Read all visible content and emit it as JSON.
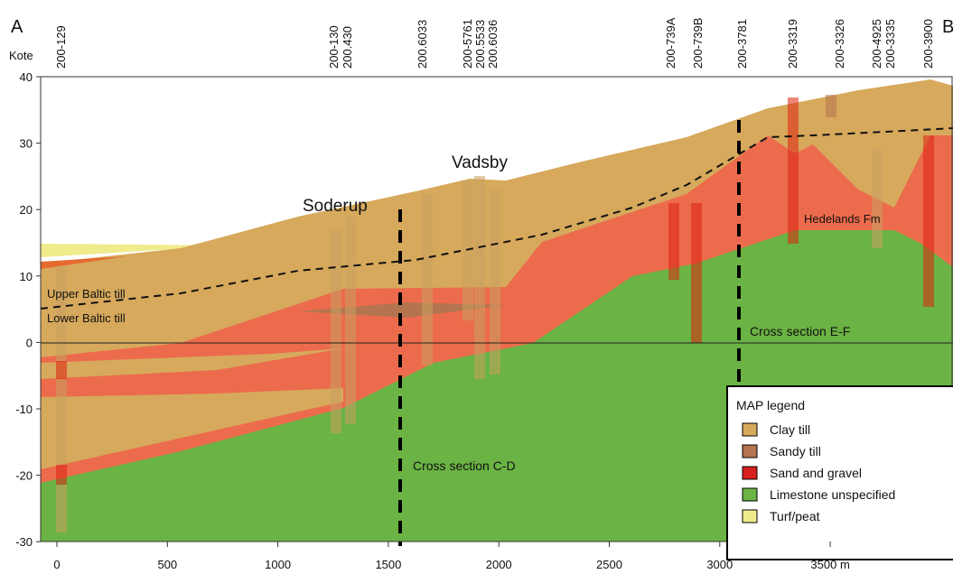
{
  "markers": {
    "start": "A",
    "end": "B"
  },
  "axis": {
    "y_label": "Kote",
    "y_ticks": [
      40,
      30,
      20,
      10,
      0,
      -10,
      -20,
      -30
    ],
    "x_ticks": [
      0,
      500,
      1000,
      1500,
      2000,
      2500,
      3000,
      "3500 m"
    ]
  },
  "boreholes": [
    "200-129",
    "200-130",
    "200.430",
    "200.6033",
    "200-5761",
    "200.5533",
    "200.6036",
    "200-739A",
    "200-739B",
    "200-3781",
    "200-3319",
    "200-3326",
    "200-4925",
    "200-3335",
    "200-3900"
  ],
  "labels": {
    "soderup": "Soderup",
    "vadsby": "Vadsby",
    "upper_till": "Upper Baltic till",
    "lower_till": "Lower Baltic till",
    "section_ef": "Cross section E-F",
    "section_cd": "Cross section C-D",
    "hedelands": "Hedelands Fm"
  },
  "legend": {
    "title": "MAP legend",
    "items": [
      "Clay till",
      "Sandy till",
      "Sand and gravel",
      "Limestone unspecified",
      "Turf/peat"
    ]
  }
}
